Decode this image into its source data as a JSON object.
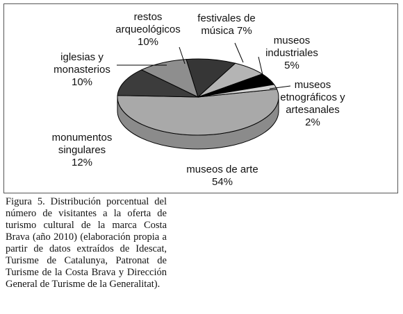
{
  "chart_data": {
    "type": "pie",
    "categories": [
      "museos de arte",
      "monumentos singulares",
      "iglesias y monasterios",
      "restos arqueológicos",
      "festivales de música",
      "museos industriales",
      "museos etnográficos y artesanales"
    ],
    "values": [
      54,
      12,
      10,
      10,
      7,
      5,
      2
    ],
    "value_labels": [
      "54%",
      "12%",
      "10%",
      "10%",
      "7%",
      "5%",
      "2%"
    ],
    "colors": [
      "#a9a9a9",
      "#3c3c3c",
      "#8e8e8e",
      "#363636",
      "#b4b4b4",
      "#000000",
      "#d2d2d2"
    ],
    "caption": "Figura 5. Distribución porcentual del número de visitantes a la oferta de turismo cultural de la marca Costa Brava (año 2010) (elaboración propia a partir de datos extraídos de Idescat, Turisme de Catalunya, Patronat de Turisme de la Costa Brava y Dirección General de Turisme de la Generalitat)."
  }
}
